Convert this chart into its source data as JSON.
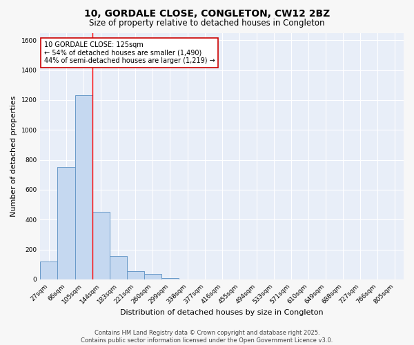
{
  "title": "10, GORDALE CLOSE, CONGLETON, CW12 2BZ",
  "subtitle": "Size of property relative to detached houses in Congleton",
  "xlabel": "Distribution of detached houses by size in Congleton",
  "ylabel": "Number of detached properties",
  "categories": [
    "27sqm",
    "66sqm",
    "105sqm",
    "144sqm",
    "183sqm",
    "221sqm",
    "260sqm",
    "299sqm",
    "338sqm",
    "377sqm",
    "416sqm",
    "455sqm",
    "494sqm",
    "533sqm",
    "571sqm",
    "610sqm",
    "649sqm",
    "688sqm",
    "727sqm",
    "766sqm",
    "805sqm"
  ],
  "values": [
    120,
    750,
    1230,
    450,
    155,
    55,
    35,
    10,
    0,
    0,
    0,
    0,
    0,
    0,
    0,
    0,
    0,
    0,
    0,
    0,
    0
  ],
  "bar_color": "#c5d8f0",
  "bar_edge_color": "#6899c8",
  "red_line_x": 2.5,
  "annotation_text": "10 GORDALE CLOSE: 125sqm\n← 54% of detached houses are smaller (1,490)\n44% of semi-detached houses are larger (1,219) →",
  "annotation_box_color": "#ffffff",
  "annotation_box_edge": "#cc0000",
  "ylim": [
    0,
    1650
  ],
  "yticks": [
    0,
    200,
    400,
    600,
    800,
    1000,
    1200,
    1400,
    1600
  ],
  "fig_bg": "#f7f7f7",
  "plot_bg": "#e8eef8",
  "grid_color": "#ffffff",
  "footer_text": "Contains HM Land Registry data © Crown copyright and database right 2025.\nContains public sector information licensed under the Open Government Licence v3.0.",
  "title_fontsize": 10,
  "subtitle_fontsize": 8.5,
  "axis_label_fontsize": 8,
  "tick_fontsize": 6.5,
  "annotation_fontsize": 7,
  "footer_fontsize": 6
}
